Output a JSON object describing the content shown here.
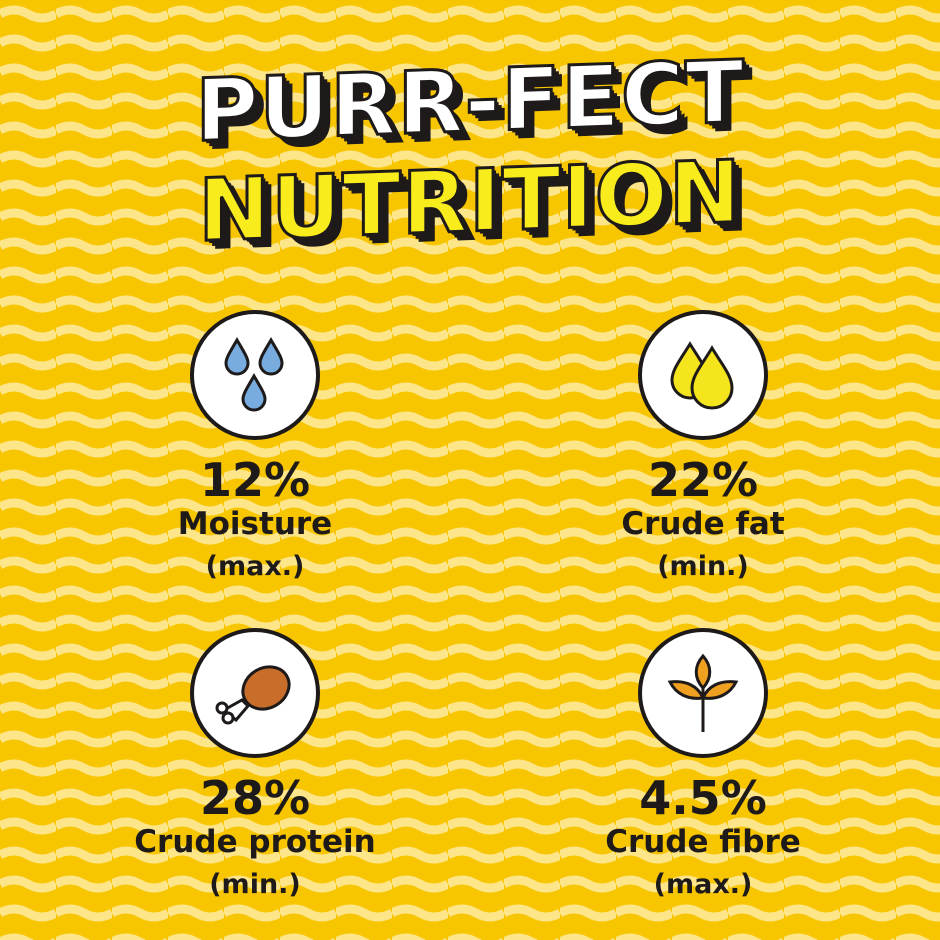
{
  "title": {
    "line1": "PURR-FECT",
    "line2": "NUTRITION"
  },
  "colors": {
    "background": "#f7c600",
    "wave": "#fde58a",
    "outline": "#1e1a1a"
  },
  "items": [
    {
      "icon": "water-drops-icon",
      "percent": "12%",
      "label": "Moisture",
      "qualifier": "(max.)"
    },
    {
      "icon": "oil-drops-icon",
      "percent": "22%",
      "label": "Crude fat",
      "qualifier": "(min.)"
    },
    {
      "icon": "chicken-drumstick-icon",
      "percent": "28%",
      "label": "Crude protein",
      "qualifier": "(min.)"
    },
    {
      "icon": "wheat-icon",
      "percent": "4.5%",
      "label": "Crude fibre",
      "qualifier": "(max.)"
    }
  ]
}
